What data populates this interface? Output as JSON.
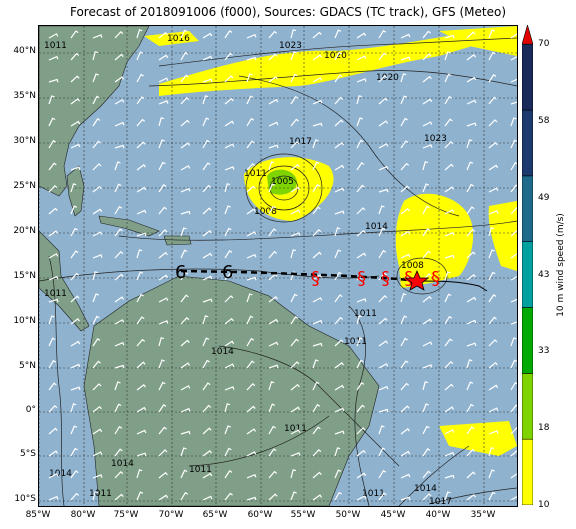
{
  "title": "Forecast of 2018091006 (f000), Sources: GDACS (TC track), GFS (Meteo)",
  "lat_labels": [
    "40°N",
    "35°N",
    "30°N",
    "25°N",
    "20°N",
    "15°N",
    "10°N",
    "5°N",
    "0°",
    "5°S",
    "10°S"
  ],
  "lon_labels": [
    "85°W",
    "80°W",
    "75°W",
    "70°W",
    "65°W",
    "60°W",
    "55°W",
    "50°W",
    "45°W",
    "40°W",
    "35°W"
  ],
  "colorbar": {
    "title": "10 m wind speed (m/s)",
    "ticks": [
      "10",
      "18",
      "33",
      "43",
      "49",
      "58",
      "70"
    ],
    "colors": [
      "#ffff00",
      "#7fd400",
      "#00aa00",
      "#00a0a0",
      "#1e6a8a",
      "#1c3a6e",
      "#1a2a5a"
    ],
    "extend_color": "#e00000"
  },
  "isobar_labels": [
    "1011",
    "1016",
    "1023",
    "1020",
    "1020",
    "1023",
    "1017",
    "1011",
    "1005",
    "1008",
    "1014",
    "1008",
    "1011",
    "1011",
    "1011",
    "1014",
    "1011",
    "1011",
    "1014",
    "1011",
    "1014",
    "1011",
    "1014",
    "1017"
  ],
  "storm_symbols": [
    "6",
    "6"
  ],
  "colors": {
    "ocean": "#8fb2cf",
    "land": "#7f9f88",
    "wind_yellow": "#ffff00",
    "wind_green": "#7fd400",
    "track": "#000000",
    "hurricane": "#ff0000",
    "star": "#ff0000"
  }
}
